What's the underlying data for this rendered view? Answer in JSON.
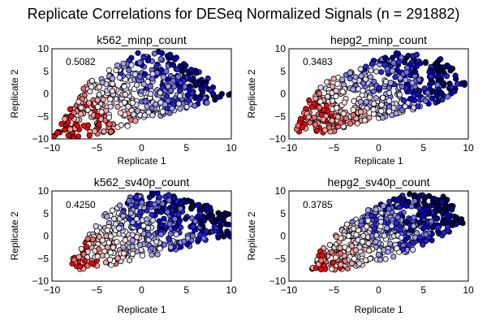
{
  "chart_data": {
    "type": "scatter",
    "title": "Replicate Correlations for DESeq Normalized Signals (n = 291882)",
    "n_points_per_panel": 291882,
    "rendered_points_are_synthetic": true,
    "color_scale": {
      "name": "diverging red-white-blue",
      "low": "#d7191c",
      "mid": "#f7f7f7",
      "high": "#08086b",
      "colors": [
        "#ff0000",
        "#f46a6a",
        "#f4a5a5",
        "#fbdede",
        "#ffffff",
        "#d8d8f8",
        "#a3a3f0",
        "#6f6ff0",
        "#2222e8",
        "#0000c8",
        "#000080",
        "#00004a"
      ]
    },
    "marker_edge_color": "#000000",
    "panels": [
      {
        "id": "k562_minp",
        "title": "k562_minp_count",
        "xlabel": "Replicate 1",
        "ylabel": "Replicate 2",
        "xlim": [
          -10,
          10
        ],
        "ylim": [
          -10,
          10
        ],
        "xticks": [
          "−10",
          "−5",
          "0",
          "5",
          "10"
        ],
        "yticks": [
          "10",
          "5",
          "0",
          "−5",
          "−10"
        ],
        "xtick_values": [
          -10,
          -5,
          0,
          5,
          10
        ],
        "ytick_values": [
          10,
          5,
          0,
          -5,
          -10
        ],
        "correlation": "0.5082",
        "cloud_outline": [
          [
            -10,
            -10
          ],
          [
            -6,
            3
          ],
          [
            -3,
            6
          ],
          [
            -1,
            9
          ],
          [
            2,
            10
          ],
          [
            4,
            8
          ],
          [
            10,
            1
          ],
          [
            10,
            -1
          ],
          [
            4,
            -4
          ],
          [
            0,
            -6
          ],
          [
            -4,
            -9
          ],
          [
            -8,
            -10
          ]
        ]
      },
      {
        "id": "hepg2_minp",
        "title": "hepg2_minp_count",
        "xlabel": "Replicate 1",
        "ylabel": "Replicate 2",
        "xlim": [
          -10,
          10
        ],
        "ylim": [
          -10,
          10
        ],
        "xticks": [
          "−10",
          "−5",
          "0",
          "5",
          "10"
        ],
        "yticks": [
          "10",
          "5",
          "0",
          "−5",
          "−10"
        ],
        "xtick_values": [
          -10,
          -5,
          0,
          5,
          10
        ],
        "ytick_values": [
          10,
          5,
          0,
          -5,
          -10
        ],
        "correlation": "0.3483",
        "cloud_outline": [
          [
            -9.5,
            -9
          ],
          [
            -8,
            -2
          ],
          [
            -6,
            3
          ],
          [
            -3,
            5
          ],
          [
            0,
            8
          ],
          [
            2.5,
            9.5
          ],
          [
            7,
            8
          ],
          [
            10,
            2.5
          ],
          [
            7,
            -2
          ],
          [
            3,
            -4
          ],
          [
            0,
            -6
          ],
          [
            -5,
            -8.5
          ]
        ]
      },
      {
        "id": "k562_sv40p",
        "title": "k562_sv40p_count",
        "xlabel": "Replicate 1",
        "ylabel": "Replicate 2",
        "xlim": [
          -10,
          10
        ],
        "ylim": [
          -10,
          10
        ],
        "xticks": [
          "−10",
          "−5",
          "0",
          "5",
          "10"
        ],
        "yticks": [
          "10",
          "5",
          "0",
          "−5",
          "−10"
        ],
        "xtick_values": [
          -10,
          -5,
          0,
          5,
          10
        ],
        "ytick_values": [
          10,
          5,
          0,
          -5,
          -10
        ],
        "correlation": "0.4250",
        "cloud_outline": [
          [
            -8.3,
            -6
          ],
          [
            -6,
            0
          ],
          [
            -4,
            5
          ],
          [
            -1,
            9
          ],
          [
            2,
            10
          ],
          [
            6,
            8
          ],
          [
            10,
            5
          ],
          [
            10,
            0
          ],
          [
            6,
            -2
          ],
          [
            2,
            -4
          ],
          [
            -2,
            -6
          ],
          [
            -7,
            -7.5
          ]
        ]
      },
      {
        "id": "hepg2_sv40p",
        "title": "hepg2_sv40p_count",
        "xlabel": "Replicate 1",
        "ylabel": "Replicate 2",
        "xlim": [
          -10,
          10
        ],
        "ylim": [
          -10,
          10
        ],
        "xticks": [
          "−10",
          "−5",
          "0",
          "5",
          "10"
        ],
        "yticks": [
          "10",
          "5",
          "0",
          "−5",
          "−10"
        ],
        "xtick_values": [
          -10,
          -5,
          0,
          5,
          10
        ],
        "ytick_values": [
          10,
          5,
          0,
          -5,
          -10
        ],
        "correlation": "0.3785",
        "cloud_outline": [
          [
            -7.5,
            -7.5
          ],
          [
            -6.5,
            -3
          ],
          [
            -4,
            2
          ],
          [
            -1,
            6
          ],
          [
            3,
            9.5
          ],
          [
            7.5,
            9
          ],
          [
            9.5,
            3
          ],
          [
            8,
            1
          ],
          [
            4,
            -3
          ],
          [
            0,
            -6
          ],
          [
            -4,
            -7.5
          ],
          [
            -6.5,
            -8
          ]
        ]
      }
    ]
  }
}
